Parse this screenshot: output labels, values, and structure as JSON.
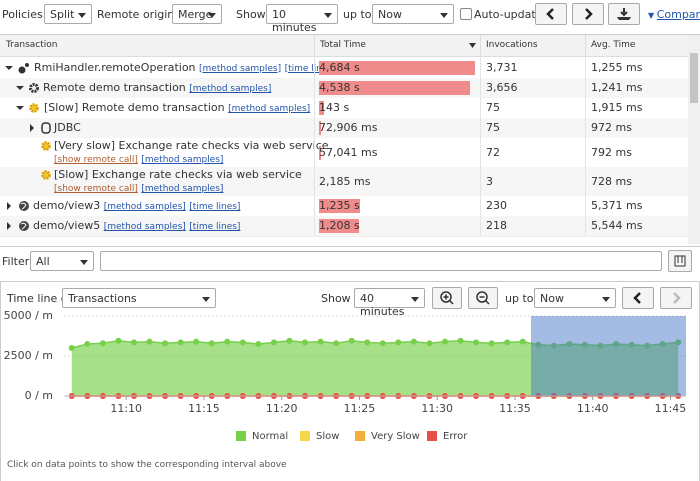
{
  "toolbar": {
    "policies_label": "Policies:",
    "policies": "Split",
    "remote_origins_label": "Remote origins:",
    "remote_origins": "Merge",
    "show_label": "Show",
    "show": "10 minutes",
    "up_to_label": "up to",
    "up_to": "Now",
    "auto_update": "Auto-update",
    "compare": "Compare"
  },
  "table": {
    "columns": [
      "Transaction",
      "Total Time",
      "Invocations",
      "Avg. Time"
    ],
    "rows": [
      {
        "name": "RmiHandler.remoteOperation",
        "links": [
          "[method samples]",
          "[time lines]"
        ],
        "total_time": {
          "value": 4684,
          "label": "4,684 s"
        },
        "invocations": "3,731",
        "avg_time": "1,255 ms"
      },
      {
        "name": "Remote demo transaction",
        "links": [
          "[method samples]"
        ],
        "total_time": {
          "value": 4538,
          "label": "4,538 s"
        },
        "invocations": "3,656",
        "avg_time": "1,241 ms"
      },
      {
        "name": "[Slow] Remote demo transaction",
        "links": [
          "[method samples]"
        ],
        "total_time": {
          "value": 143,
          "label": "143 s"
        },
        "invocations": "75",
        "avg_time": "1,915 ms"
      },
      {
        "name": "JDBC",
        "total_time": {
          "value": 72.906,
          "label": "72,906 ms"
        },
        "invocations": "75",
        "avg_time": "972 ms"
      },
      {
        "name": "[Very slow] Exchange rate checks via web service",
        "sublinks": [
          "[show remote call]",
          "[method samples]"
        ],
        "total_time": {
          "value": 57.041,
          "label": "57,041 ms"
        },
        "invocations": "72",
        "avg_time": "792 ms"
      },
      {
        "name": "[Slow] Exchange rate checks via web service",
        "sublinks": [
          "[show remote call]",
          "[method samples]"
        ],
        "total_time": {
          "value": 2.185,
          "label": "2,185 ms"
        },
        "invocations": "3",
        "avg_time": "728 ms"
      },
      {
        "name": "demo/view3",
        "links": [
          "[method samples]",
          "[time lines]"
        ],
        "total_time": {
          "value": 1235,
          "label": "1,235 s"
        },
        "invocations": "230",
        "avg_time": "5,371 ms"
      },
      {
        "name": "demo/view5",
        "links": [
          "[method samples]",
          "[time lines]"
        ],
        "total_time": {
          "value": 1208,
          "label": "1,208 s"
        },
        "invocations": "218",
        "avg_time": "5,544 ms"
      }
    ]
  },
  "filter": {
    "label": "Filter:",
    "value": "All"
  },
  "timeline": {
    "label": "Time line of",
    "view": "Transactions",
    "show_label": "Show",
    "show": "40 minutes",
    "up_to_label": "up to",
    "up_to": "Now",
    "note": "Click on data points to show the corresponding interval above"
  },
  "chart_data": {
    "type": "area",
    "categories": [
      null,
      null,
      null,
      null,
      "11:10",
      null,
      null,
      null,
      null,
      "11:15",
      null,
      null,
      null,
      null,
      "11:20",
      null,
      null,
      null,
      null,
      "11:25",
      null,
      null,
      null,
      null,
      "11:30",
      null,
      null,
      null,
      null,
      "11:35",
      null,
      null,
      null,
      null,
      "11:40",
      null,
      null,
      null,
      null,
      "11:45"
    ],
    "series": [
      {
        "name": "Normal",
        "color": "#77d04a",
        "values": [
          3000,
          3250,
          3300,
          3450,
          3350,
          3400,
          3300,
          3350,
          3400,
          3300,
          3400,
          3350,
          3250,
          3350,
          3450,
          3350,
          3400,
          3300,
          3450,
          3350,
          3300,
          3350,
          3400,
          3300,
          3400,
          3450,
          3350,
          3300,
          3350,
          3400,
          3200,
          3150,
          3250,
          3200,
          3150,
          3250,
          3200,
          3150,
          3250,
          3350
        ]
      },
      {
        "name": "Slow",
        "color": "#f3d84a",
        "values": [
          0,
          0,
          0,
          0,
          0,
          0,
          0,
          0,
          0,
          0,
          0,
          0,
          0,
          0,
          0,
          0,
          0,
          0,
          0,
          0,
          0,
          0,
          0,
          0,
          0,
          0,
          0,
          0,
          0,
          0,
          0,
          0,
          0,
          0,
          0,
          0,
          0,
          0,
          0,
          0
        ]
      },
      {
        "name": "Very Slow",
        "color": "#f5ad3c",
        "values": [
          0,
          0,
          0,
          0,
          0,
          0,
          0,
          0,
          0,
          0,
          0,
          0,
          0,
          0,
          0,
          0,
          0,
          0,
          0,
          0,
          0,
          0,
          0,
          0,
          0,
          0,
          0,
          0,
          0,
          0,
          0,
          0,
          0,
          0,
          0,
          0,
          0,
          0,
          0,
          0
        ]
      },
      {
        "name": "Error",
        "color": "#e8504a",
        "values": [
          0,
          0,
          0,
          0,
          0,
          0,
          0,
          0,
          0,
          0,
          0,
          0,
          0,
          0,
          0,
          0,
          0,
          0,
          0,
          0,
          0,
          0,
          0,
          0,
          0,
          0,
          0,
          0,
          0,
          0,
          0,
          0,
          0,
          0,
          0,
          0,
          0,
          0,
          0,
          0
        ]
      }
    ],
    "ylim": [
      0,
      5000
    ],
    "yticks": [
      {
        "value": 0,
        "label": "0 / m"
      },
      {
        "value": 2500,
        "label": "2500 / m"
      },
      {
        "value": 5000,
        "label": "5000 / m"
      }
    ],
    "grid": true,
    "legend": "bottom"
  }
}
